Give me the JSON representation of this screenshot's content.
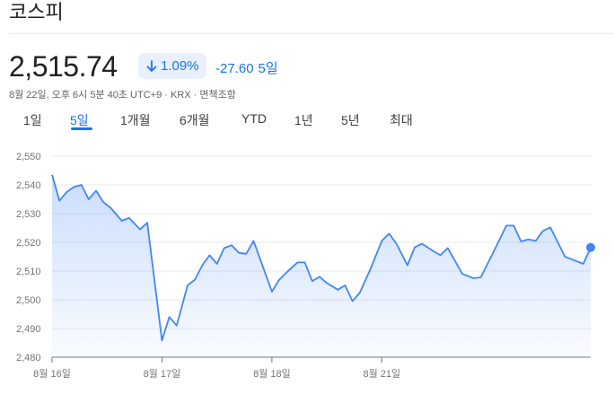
{
  "title": "코스피",
  "price": "2,515.74",
  "change": {
    "percent": "1.09%",
    "direction": "down",
    "absolute": "-27.60",
    "period": "5일",
    "color": "#1a73e8"
  },
  "meta": "8월 22일, 오후 6시 5분 40초 UTC+9 · KRX · 면책조항",
  "tabs": [
    {
      "label": "1일",
      "active": false
    },
    {
      "label": "5일",
      "active": true
    },
    {
      "label": "1개월",
      "active": false
    },
    {
      "label": "6개월",
      "active": false
    },
    {
      "label": "YTD",
      "active": false
    },
    {
      "label": "1년",
      "active": false
    },
    {
      "label": "5년",
      "active": false
    },
    {
      "label": "최대",
      "active": false
    }
  ],
  "chart_data": {
    "type": "area",
    "color": "#4285f4",
    "ylim": [
      2480,
      2550
    ],
    "yticks": [
      "2,550",
      "2,540",
      "2,530",
      "2,520",
      "2,510",
      "2,500",
      "2,490",
      "2,480"
    ],
    "ytick_values": [
      2550,
      2540,
      2530,
      2520,
      2510,
      2500,
      2490,
      2480
    ],
    "xticks": [
      {
        "label": "8월 16일",
        "index": 0
      },
      {
        "label": "8월 17일",
        "index": 30
      },
      {
        "label": "8월 18일",
        "index": 60
      },
      {
        "label": "8월 21일",
        "index": 90
      }
    ],
    "x_count": 148,
    "grid": true,
    "points": [
      [
        0,
        2543.5
      ],
      [
        2,
        2534.5
      ],
      [
        4,
        2537.5
      ],
      [
        6,
        2539.3
      ],
      [
        8,
        2540.0
      ],
      [
        10,
        2535.0
      ],
      [
        12,
        2538.0
      ],
      [
        14,
        2534.0
      ],
      [
        16,
        2532.0
      ],
      [
        19,
        2527.5
      ],
      [
        21,
        2528.5
      ],
      [
        24,
        2524.5
      ],
      [
        26,
        2526.8
      ],
      [
        30,
        2485.8
      ],
      [
        32,
        2494.0
      ],
      [
        34,
        2491.0
      ],
      [
        37,
        2505.0
      ],
      [
        39,
        2507.0
      ],
      [
        41,
        2512.0
      ],
      [
        43,
        2515.5
      ],
      [
        45,
        2512.5
      ],
      [
        47,
        2518.0
      ],
      [
        49,
        2519.0
      ],
      [
        51,
        2516.3
      ],
      [
        53,
        2516.0
      ],
      [
        55,
        2520.5
      ],
      [
        60,
        2502.8
      ],
      [
        62,
        2507.0
      ],
      [
        64,
        2509.5
      ],
      [
        67,
        2513.0
      ],
      [
        69,
        2513.0
      ],
      [
        71,
        2506.5
      ],
      [
        73,
        2508.0
      ],
      [
        75,
        2505.8
      ],
      [
        78,
        2503.5
      ],
      [
        80,
        2505.0
      ],
      [
        82,
        2499.5
      ],
      [
        84,
        2502.5
      ],
      [
        87,
        2511.0
      ],
      [
        90,
        2520.5
      ],
      [
        92,
        2523.0
      ],
      [
        94,
        2519.5
      ],
      [
        97,
        2512.0
      ],
      [
        99,
        2518.3
      ],
      [
        101,
        2519.5
      ],
      [
        104,
        2517.0
      ],
      [
        106,
        2515.5
      ],
      [
        108,
        2518.0
      ],
      [
        112,
        2509.0
      ],
      [
        115,
        2507.5
      ],
      [
        117,
        2507.8
      ],
      [
        121,
        2518.0
      ],
      [
        124,
        2525.8
      ],
      [
        126,
        2525.8
      ],
      [
        128,
        2520.3
      ],
      [
        130,
        2521.0
      ],
      [
        132,
        2520.5
      ],
      [
        134,
        2524.0
      ],
      [
        136,
        2525.2
      ],
      [
        140,
        2515.0
      ],
      [
        143,
        2513.5
      ],
      [
        145,
        2512.5
      ],
      [
        147,
        2518.2
      ]
    ]
  }
}
